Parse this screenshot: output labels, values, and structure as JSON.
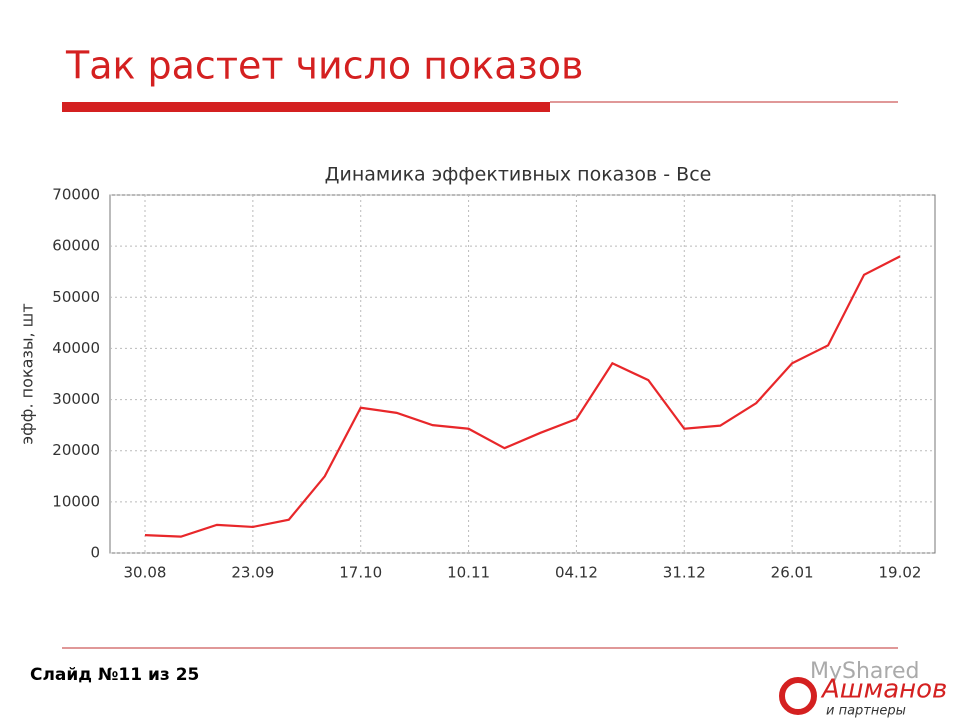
{
  "slide": {
    "title": "Так растет число показов",
    "footer": "Слайд №11 из 25",
    "logo_top": "MyShared",
    "logo_main": "Ашманов",
    "logo_sub": "и партнеры"
  },
  "chart_data": {
    "type": "line",
    "title": "Динамика эффективных показов - Все",
    "y_label": "эфф. показы, шт",
    "categories": [
      "30.08",
      null,
      null,
      "23.09",
      null,
      null,
      "17.10",
      null,
      null,
      "10.11",
      null,
      null,
      "04.12",
      null,
      null,
      "31.12",
      null,
      null,
      "26.01",
      null,
      null,
      "19.02"
    ],
    "values": [
      3500,
      3200,
      5500,
      5100,
      6500,
      15000,
      28400,
      27400,
      25000,
      24300,
      20500,
      23500,
      26200,
      37100,
      33800,
      24300,
      24900,
      29300,
      37100,
      40600,
      54400,
      58000
    ],
    "color": "#e8272a",
    "ylim": [
      0,
      70000
    ],
    "yticks": [
      0,
      10000,
      20000,
      30000,
      40000,
      50000,
      60000,
      70000
    ],
    "grid": true
  }
}
